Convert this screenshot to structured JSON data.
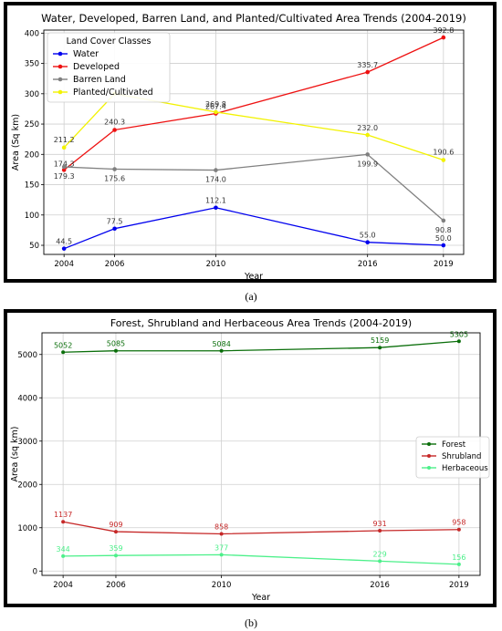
{
  "captions": [
    "(a)",
    "(b)"
  ],
  "chart_data": [
    {
      "type": "line",
      "title": "Water, Developed, Barren Land, and Planted/Cultivated Area Trends (2004-2019)",
      "xlabel": "Year",
      "ylabel": "Area (Sq km)",
      "x": [
        2004,
        2006,
        2010,
        2016,
        2019
      ],
      "xlim": [
        2003.2,
        2019.8
      ],
      "ylim": [
        35,
        405
      ],
      "yticks": [
        50,
        100,
        150,
        200,
        250,
        300,
        350,
        400
      ],
      "grid": true,
      "legend": {
        "title": "Land Cover Classes",
        "placement": "top-left"
      },
      "series": [
        {
          "name": "Water",
          "color": "#0000ee",
          "values": [
            44.5,
            77.5,
            112.1,
            55.0,
            50.0
          ],
          "labels": [
            "44.5",
            "77.5",
            "112.1",
            "55.0",
            "50.0"
          ]
        },
        {
          "name": "Developed",
          "color": "#ee1111",
          "values": [
            174.3,
            240.3,
            267.4,
            335.7,
            392.8
          ],
          "labels": [
            "174.3",
            "240.3",
            "267.4",
            "335.7",
            "392.8"
          ]
        },
        {
          "name": "Barren Land",
          "color": "#808080",
          "values": [
            179.3,
            175.6,
            174.0,
            199.9,
            90.8
          ],
          "labels": [
            "179.3",
            "175.6",
            "174.0",
            "199.9",
            "90.8"
          ]
        },
        {
          "name": "Planted/Cultivated",
          "color": "#f2f200",
          "values": [
            211.2,
            300.0,
            269.8,
            232.0,
            190.6
          ],
          "labels": [
            "211.2",
            "",
            "269.8",
            "232.0",
            "190.6"
          ]
        }
      ]
    },
    {
      "type": "line",
      "title": "Forest, Shrubland and Herbaceous Area Trends (2004-2019)",
      "xlabel": "Year",
      "ylabel": "Area (sq km)",
      "x": [
        2004,
        2006,
        2010,
        2016,
        2019
      ],
      "xlim": [
        2003.2,
        2019.8
      ],
      "ylim": [
        -100,
        5500
      ],
      "yticks": [
        0,
        1000,
        2000,
        3000,
        4000,
        5000
      ],
      "grid": true,
      "legend": {
        "placement": "center-right"
      },
      "series": [
        {
          "name": "Forest",
          "color": "#0a6e0a",
          "values": [
            5052,
            5085,
            5084,
            5159,
            5305
          ],
          "labels": [
            "5052",
            "5085",
            "5084",
            "5159",
            "5305"
          ]
        },
        {
          "name": "Shrubland",
          "color": "#c62828",
          "values": [
            1137,
            909,
            858,
            931,
            958
          ],
          "labels": [
            "1137",
            "909",
            "858",
            "931",
            "958"
          ]
        },
        {
          "name": "Herbaceous",
          "color": "#4cf08a",
          "values": [
            344,
            359,
            377,
            229,
            156
          ],
          "labels": [
            "344",
            "359",
            "377",
            "229",
            "156"
          ]
        }
      ]
    }
  ]
}
